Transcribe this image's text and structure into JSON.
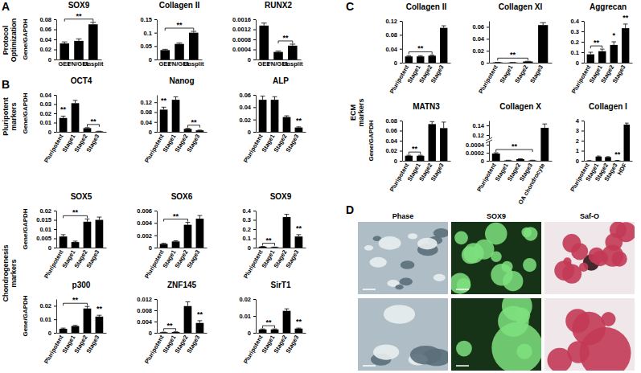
{
  "chart_data": [
    {
      "type": "bar",
      "title": "SOX9",
      "ylabel": "Gene/GAPDH",
      "categories": [
        "GEL",
        "FN/GEL",
        "Unsplit"
      ],
      "values": [
        0.032,
        0.037,
        0.07
      ],
      "errors": [
        0.003,
        0.004,
        0.004
      ],
      "color": "#000000",
      "ylim": [
        0,
        0.08
      ],
      "yticks": [
        0,
        0.02,
        0.04,
        0.06,
        0.08
      ],
      "annotations": [
        {
          "text": "**",
          "span": [
            0,
            2
          ]
        }
      ]
    },
    {
      "type": "bar",
      "title": "Collagen II",
      "categories": [
        "GEL",
        "FN/GEL",
        "Unsplit"
      ],
      "values": [
        0.035,
        0.058,
        0.1
      ],
      "errors": [
        0.003,
        0.004,
        0.005
      ],
      "color": "#000000",
      "ylim": [
        0,
        0.15
      ],
      "yticks": [
        0,
        0.05,
        0.1,
        0.15
      ],
      "annotations": [
        {
          "text": "**",
          "span": [
            0,
            2
          ]
        }
      ]
    },
    {
      "type": "bar",
      "title": "RUNX2",
      "categories": [
        "GEL",
        "FN/GEL",
        "Unsplit"
      ],
      "values": [
        0.00135,
        0.0003,
        0.00055
      ],
      "errors": [
        0.0001,
        4e-05,
        6e-05
      ],
      "color": "#000000",
      "ylim": [
        0,
        0.0016
      ],
      "yticks": [
        0,
        0.0004,
        0.0008,
        0.0012,
        0.0016
      ],
      "annotations": [
        {
          "text": "**",
          "span": [
            1,
            2
          ]
        }
      ]
    },
    {
      "type": "bar",
      "title": "OCT4",
      "ylabel": "Gene/GAPDH",
      "categories": [
        "Pluripotent",
        "Stage1",
        "Stage2",
        "Stage3"
      ],
      "values": [
        0.015,
        0.031,
        0.004,
        0.0005
      ],
      "errors": [
        0.002,
        0.003,
        0.0005,
        0.0002
      ],
      "color": "#000000",
      "ylim": [
        0,
        0.04
      ],
      "yticks": [
        0,
        0.01,
        0.02,
        0.03,
        0.04
      ],
      "annotations": [
        {
          "text": "**",
          "span": [
            0,
            0
          ]
        },
        {
          "text": "**",
          "span": [
            2,
            3
          ]
        }
      ]
    },
    {
      "type": "bar",
      "title": "Nanog",
      "categories": [
        "Pluripotent",
        "Stage1",
        "Stage2",
        "Stage3"
      ],
      "values": [
        0.09,
        0.13,
        0.012,
        0.006
      ],
      "errors": [
        0.01,
        0.012,
        0.002,
        0.001
      ],
      "color": "#000000",
      "ylim": [
        0,
        0.15
      ],
      "yticks": [
        0,
        0.04,
        0.08,
        0.12
      ],
      "annotations": [
        {
          "text": "**",
          "span": [
            0,
            0
          ]
        },
        {
          "text": "**",
          "span": [
            2,
            3
          ]
        }
      ]
    },
    {
      "type": "bar",
      "title": "ALP",
      "categories": [
        "Pluripotent",
        "Stage1",
        "Stage2",
        "Stage3"
      ],
      "values": [
        0.052,
        0.052,
        0.024,
        0.007
      ],
      "errors": [
        0.006,
        0.005,
        0.002,
        0.001
      ],
      "color": "#000000",
      "ylim": [
        0,
        0.06
      ],
      "yticks": [
        0,
        0.02,
        0.04,
        0.06
      ],
      "annotations": [
        {
          "text": "**",
          "span": [
            3,
            3
          ]
        }
      ]
    },
    {
      "type": "bar",
      "title": "SOX5",
      "ylabel": "Gene/GAPDH",
      "categories": [
        "Pluripotent",
        "Stage1",
        "Stage2",
        "Stage3"
      ],
      "values": [
        0.006,
        0.003,
        0.014,
        0.015
      ],
      "errors": [
        0.001,
        0.0005,
        0.0015,
        0.0015
      ],
      "color": "#000000",
      "ylim": [
        0,
        0.02
      ],
      "yticks": [
        0,
        0.005,
        0.01,
        0.015,
        0.02
      ],
      "annotations": [
        {
          "text": "**",
          "span": [
            0,
            2
          ]
        }
      ]
    },
    {
      "type": "bar",
      "title": "SOX6",
      "categories": [
        "Pluripotent",
        "Stage1",
        "Stage2",
        "Stage3"
      ],
      "values": [
        0.0006,
        0.001,
        0.0037,
        0.0047
      ],
      "errors": [
        0.0001,
        0.0001,
        0.0004,
        0.0005
      ],
      "color": "#000000",
      "ylim": [
        0,
        0.006
      ],
      "yticks": [
        0,
        0.002,
        0.004,
        0.006
      ],
      "annotations": [
        {
          "text": "**",
          "span": [
            0,
            2
          ]
        }
      ]
    },
    {
      "type": "bar",
      "title": "SOX9",
      "categories": [
        "Pluripotent",
        "Stage1",
        "Stage2",
        "Stage3"
      ],
      "values": [
        0.01,
        0.005,
        0.33,
        0.12
      ],
      "errors": [
        0.002,
        0.001,
        0.03,
        0.02
      ],
      "color": "#000000",
      "ylim": [
        0,
        0.4
      ],
      "yticks": [
        0,
        0.1,
        0.2,
        0.3,
        0.4
      ],
      "annotations": [
        {
          "text": "**",
          "span": [
            0,
            1
          ]
        },
        {
          "text": "**",
          "span": [
            3,
            3
          ]
        }
      ]
    },
    {
      "type": "bar",
      "title": "p300",
      "ylabel": "Gene/GAPDH",
      "categories": [
        "Pluripotent",
        "Stage1",
        "Stage2",
        "Stage3"
      ],
      "values": [
        0.003,
        0.005,
        0.018,
        0.012
      ],
      "errors": [
        0.0005,
        0.0005,
        0.0015,
        0.001
      ],
      "color": "#000000",
      "ylim": [
        0,
        0.025
      ],
      "yticks": [
        0,
        0.01,
        0.02
      ],
      "annotations": [
        {
          "text": "**",
          "span": [
            0,
            2
          ]
        },
        {
          "text": "**",
          "span": [
            3,
            3
          ]
        }
      ]
    },
    {
      "type": "bar",
      "title": "ZNF145",
      "categories": [
        "Pluripotent",
        "Stage1",
        "Stage2",
        "Stage3"
      ],
      "values": [
        0.0002,
        0.0003,
        0.0095,
        0.0035
      ],
      "errors": [
        5e-05,
        5e-05,
        0.0015,
        0.0008
      ],
      "color": "#000000",
      "ylim": [
        0,
        0.012
      ],
      "yticks": [
        0,
        0.004,
        0.008,
        0.012
      ],
      "annotations": [
        {
          "text": "**",
          "span": [
            0,
            1
          ]
        },
        {
          "text": "**",
          "span": [
            3,
            3
          ]
        }
      ]
    },
    {
      "type": "bar",
      "title": "SirT1",
      "categories": [
        "Pluripotent",
        "Stage1",
        "Stage2",
        "Stage3"
      ],
      "values": [
        0.002,
        0.002,
        0.013,
        0.0025
      ],
      "errors": [
        0.0003,
        0.0003,
        0.0012,
        0.0003
      ],
      "color": "#000000",
      "ylim": [
        0,
        0.02
      ],
      "yticks": [
        0,
        0.01,
        0.02
      ],
      "annotations": [
        {
          "text": "**",
          "span": [
            0,
            1
          ]
        },
        {
          "text": "**",
          "span": [
            3,
            3
          ]
        }
      ]
    },
    {
      "type": "bar",
      "title": "Collagen II",
      "categories": [
        "Pluripotent",
        "Stage1",
        "Stage2",
        "Stage3"
      ],
      "values": [
        0.018,
        0.018,
        0.02,
        0.1
      ],
      "errors": [
        0.002,
        0.002,
        0.002,
        0.006
      ],
      "color": "#000000",
      "ylim": [
        0,
        0.12
      ],
      "yticks": [
        0,
        0.04,
        0.08,
        0.12
      ],
      "annotations": [
        {
          "text": "**",
          "span": [
            0,
            2
          ]
        }
      ]
    },
    {
      "type": "bar",
      "title": "Collagen XI",
      "categories": [
        "Pluripotent",
        "Stage1",
        "Stage2",
        "Stage3"
      ],
      "values": [
        0.0005,
        0.0003,
        0.002,
        0.063
      ],
      "errors": [
        0.0001,
        0.0001,
        0.0003,
        0.004
      ],
      "color": "#000000",
      "ylim": [
        0,
        0.07
      ],
      "yticks": [
        0,
        0.02,
        0.04,
        0.06
      ],
      "annotations": [
        {
          "text": "**",
          "span": [
            0,
            2
          ]
        }
      ]
    },
    {
      "type": "bar",
      "title": "Aggrecan",
      "categories": [
        "Pluripotent",
        "Stage1",
        "Stage2",
        "Stage3"
      ],
      "values": [
        0.08,
        0.11,
        0.17,
        0.33
      ],
      "errors": [
        0.02,
        0.02,
        0.03,
        0.04
      ],
      "color": "#000000",
      "ylim": [
        0,
        0.4
      ],
      "yticks": [
        0,
        0.1,
        0.2,
        0.3,
        0.4
      ],
      "annotations": [
        {
          "text": "**",
          "span": [
            0,
            1
          ]
        },
        {
          "text": "*",
          "span": [
            2,
            2
          ]
        },
        {
          "text": "**",
          "span": [
            3,
            3
          ]
        }
      ]
    },
    {
      "type": "bar",
      "title": "MATN3",
      "ylabel": "Gene/GAPDH",
      "categories": [
        "Pluripotent",
        "Stage1",
        "Stage2",
        "Stage3"
      ],
      "values": [
        0.01,
        0.01,
        0.073,
        0.065
      ],
      "errors": [
        0.001,
        0.001,
        0.005,
        0.012
      ],
      "color": "#000000",
      "ylim": [
        0,
        0.08
      ],
      "yticks": [
        0,
        0.02,
        0.04,
        0.06,
        0.08
      ],
      "annotations": [
        {
          "text": "**",
          "span": [
            0,
            1
          ]
        }
      ]
    },
    {
      "type": "bar",
      "title": "Collagen X",
      "categories": [
        "Pluripotent",
        "Stage1",
        "Stage2",
        "Stage3",
        "OA chondrocyte"
      ],
      "values": [
        0.00018,
        1e-05,
        4e-05,
        1e-05,
        0.135
      ],
      "errors": [
        2e-05,
        5e-06,
        1e-05,
        5e-06,
        0.008
      ],
      "color": "#000000",
      "ylim": [
        0,
        0.15
      ],
      "axis_break": [
        0.0004,
        0.12
      ],
      "yticks": [
        0,
        0.0002,
        0.0004,
        0.12,
        0.14
      ],
      "annotations": [
        {
          "text": "**",
          "span": [
            0,
            3
          ]
        }
      ]
    },
    {
      "type": "bar",
      "title": "Collagen I",
      "categories": [
        "Pluripotent",
        "Stage1",
        "Stage2",
        "Stage3",
        "HDF"
      ],
      "values": [
        0.02,
        0.42,
        0.37,
        0.03,
        3.6
      ],
      "errors": [
        0.005,
        0.05,
        0.04,
        0.005,
        0.15
      ],
      "color": "#000000",
      "ylim": [
        0,
        4
      ],
      "yticks": [
        0,
        1,
        2,
        3,
        4
      ],
      "annotations": [
        {
          "text": "**",
          "span": [
            3,
            3
          ]
        }
      ]
    }
  ],
  "figure": {
    "panel_labels": [
      "A",
      "B",
      "C",
      "D"
    ],
    "row_labels": [
      "Protocol Optimization",
      "Pluripotent markers",
      "Chondrogenesis markers",
      "ECM markers"
    ],
    "photo_columns": [
      "Phase",
      "SOX9",
      "Saf-O"
    ]
  }
}
